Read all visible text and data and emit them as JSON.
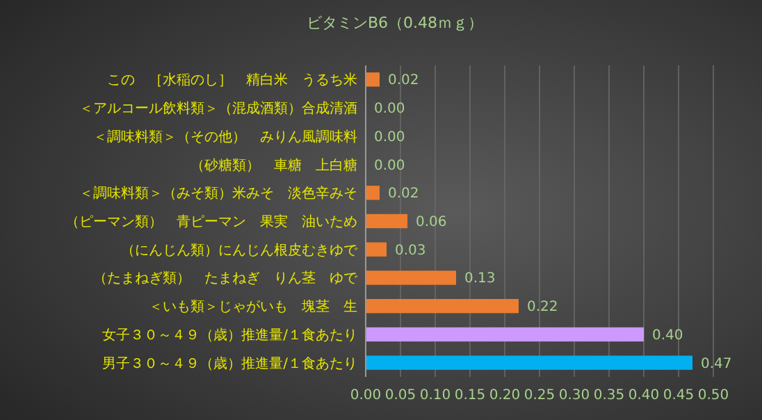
{
  "chart_data": {
    "type": "bar",
    "orientation": "horizontal",
    "title": "ビタミンB6（0.48ｍｇ）",
    "categories": [
      "この　［水稲のし］　精白米　うるち米",
      "＜アルコール飲料類＞（混成酒類）合成清酒",
      "＜調味料類＞（その他）　みりん風調味料",
      "（砂糖類）　車糖　上白糖",
      "＜調味料類＞（みそ類）米みそ　淡色辛みそ",
      "（ピーマン類）　青ピーマン　果実　油いため",
      "（にんじん類）にんじん根皮むきゆで",
      "（たまねぎ類）　たまねぎ　りん茎　ゆで",
      "＜いも類＞じゃがいも　塊茎　生",
      "女子３０～４９（歳）推進量/１食あたり",
      "男子３０～４９（歳）推進量/１食あたり"
    ],
    "values": [
      0.02,
      0.0,
      0.0,
      0.0,
      0.02,
      0.06,
      0.03,
      0.13,
      0.22,
      0.4,
      0.47
    ],
    "colors": [
      "#ed7d31",
      "#ed7d31",
      "#ed7d31",
      "#ed7d31",
      "#ed7d31",
      "#ed7d31",
      "#ed7d31",
      "#ed7d31",
      "#ed7d31",
      "#cc99ff",
      "#00b0f0"
    ],
    "xlim": [
      0,
      0.5
    ],
    "xticks": [
      {
        "value": 0,
        "label": "0.00"
      },
      {
        "value": 0.05,
        "label": "0.05"
      },
      {
        "value": 0.1,
        "label": "0.10"
      },
      {
        "value": 0.15,
        "label": "0.15"
      },
      {
        "value": 0.2,
        "label": "0.20"
      },
      {
        "value": 0.25,
        "label": "0.25"
      },
      {
        "value": 0.3,
        "label": "0.30"
      },
      {
        "value": 0.35,
        "label": "0.35"
      },
      {
        "value": 0.4,
        "label": "0.40"
      },
      {
        "value": 0.45,
        "label": "0.45"
      },
      {
        "value": 0.5,
        "label": "0.50"
      }
    ],
    "grid": "x",
    "value_labels": [
      "0.02",
      "0.00",
      "0.00",
      "0.00",
      "0.02",
      "0.06",
      "0.03",
      "0.13",
      "0.22",
      "0.40",
      "0.47"
    ]
  }
}
